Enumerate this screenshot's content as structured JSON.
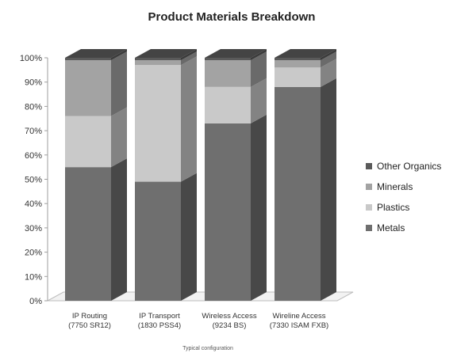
{
  "chart_data": {
    "type": "bar",
    "stacked": true,
    "three_d": true,
    "title": "Product Materials Breakdown",
    "xlabel": "Typical configuration",
    "ylabel": "",
    "ylim": [
      0,
      100
    ],
    "yticks": [
      "0%",
      "10%",
      "20%",
      "30%",
      "40%",
      "50%",
      "60%",
      "70%",
      "80%",
      "90%",
      "100%"
    ],
    "categories": [
      [
        "IP Routing",
        "(7750 SR12)"
      ],
      [
        "IP Transport",
        "(1830 PSS4)"
      ],
      [
        "Wireless Access",
        "(9234 BS)"
      ],
      [
        "Wireline Access",
        "(7330 ISAM FXB)"
      ]
    ],
    "series": [
      {
        "name": "Metals",
        "values": [
          55,
          49,
          73,
          88
        ],
        "color": "#6f6f6f"
      },
      {
        "name": "Plastics",
        "values": [
          21,
          48,
          15,
          8
        ],
        "color": "#c9c9c9"
      },
      {
        "name": "Minerals",
        "values": [
          23,
          2,
          11,
          3
        ],
        "color": "#a3a3a3"
      },
      {
        "name": "Other Organics",
        "values": [
          1,
          1,
          1,
          1
        ],
        "color": "#5a5a5a"
      }
    ],
    "legend_order": [
      "Other Organics",
      "Minerals",
      "Plastics",
      "Metals"
    ],
    "legend_position": "right",
    "grid": false
  }
}
